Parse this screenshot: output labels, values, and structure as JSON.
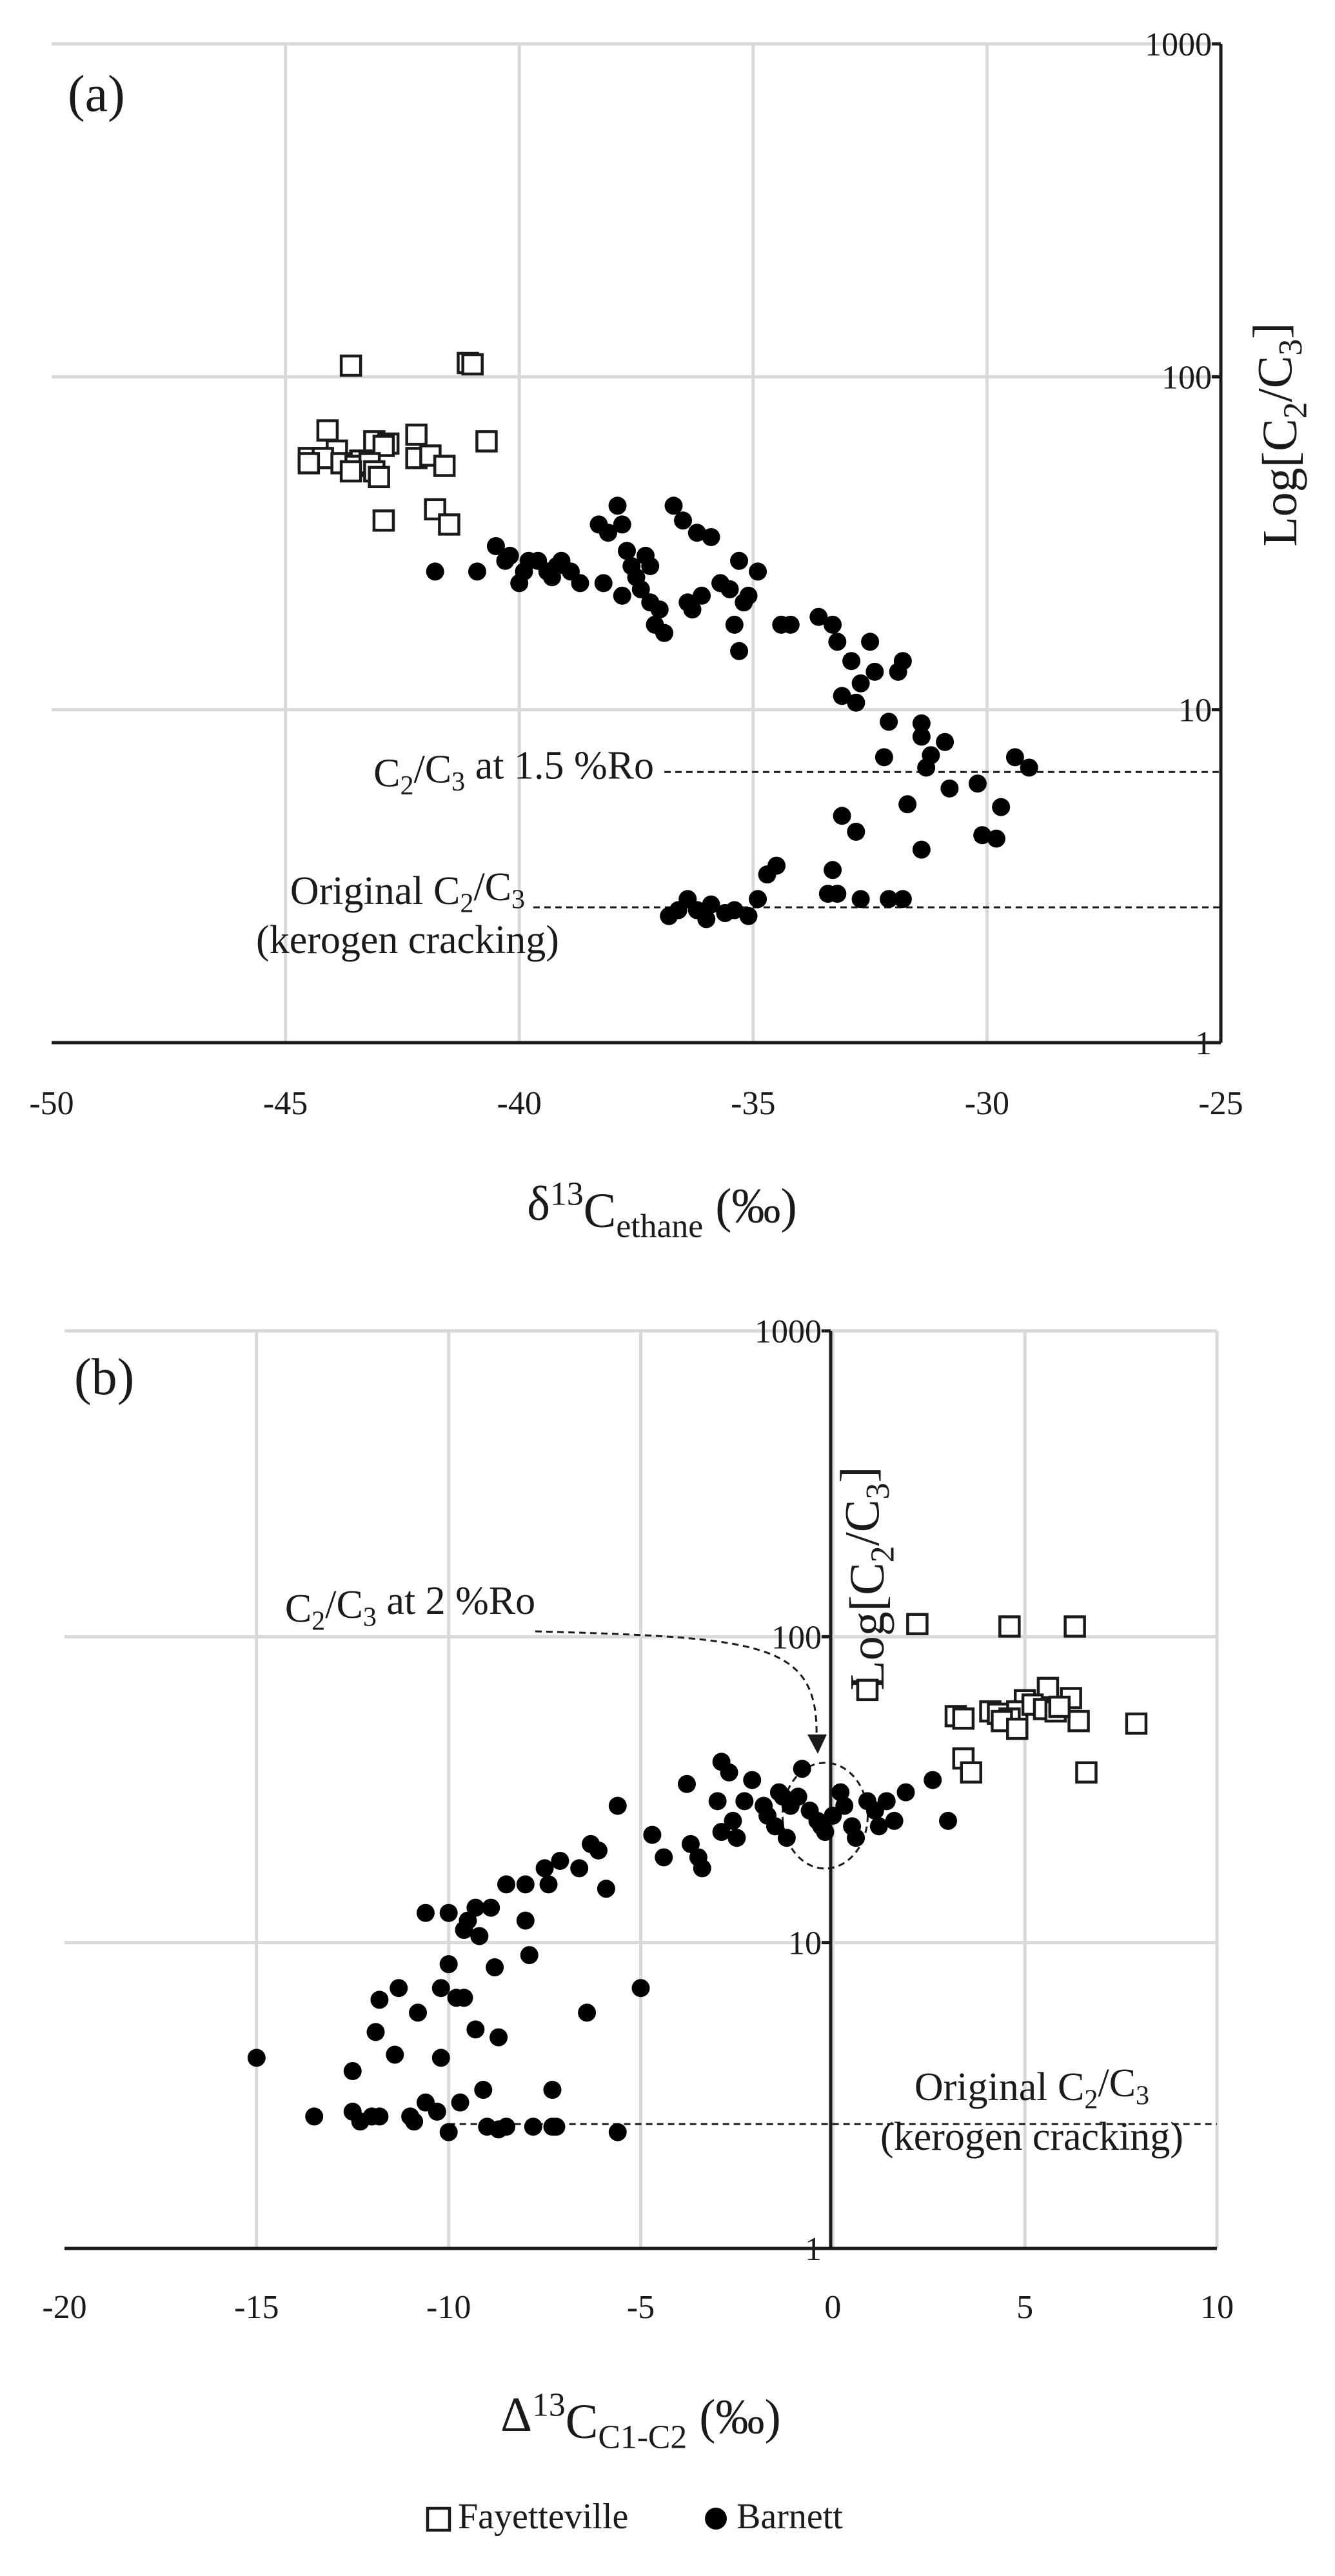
{
  "chart_data": [
    {
      "type": "scatter",
      "panel_label": "(a)",
      "yscale": "log",
      "ylabel_parts": [
        "Log[C",
        "2",
        "/C",
        "3",
        "]"
      ],
      "xlabel_parts": [
        "δ",
        "13",
        "C",
        "ethane",
        " (‰)"
      ],
      "xlim": [
        -50,
        -25
      ],
      "ylim": [
        1,
        1000
      ],
      "x_ticks": [
        -50,
        -45,
        -40,
        -35,
        -30,
        -25
      ],
      "x_tick_labels": [
        "-50",
        "-45",
        "-40",
        "-35",
        "-30",
        "-25"
      ],
      "y_ticks": [
        1,
        10,
        100,
        1000
      ],
      "y_tick_labels": [
        "1",
        "10",
        "100",
        "1000"
      ],
      "annotations": [
        {
          "id": "a-ro",
          "parts": [
            "C",
            "2",
            "/C",
            "3",
            " at 1.5 %Ro"
          ],
          "y": 6.5,
          "x_from": -36.9,
          "x_to": -25
        },
        {
          "id": "a-orig",
          "parts": [
            "Original C",
            "2",
            "/C",
            "3"
          ],
          "line2": "(kerogen cracking)",
          "y": 2.55,
          "x_from": -39.7,
          "x_to": -25
        }
      ],
      "series": [
        {
          "name": "Fayetteville",
          "marker": "open-square",
          "points": [
            [
              -43.6,
              108
            ],
            [
              -41.1,
              110
            ],
            [
              -41.0,
              109
            ],
            [
              -44.1,
              69
            ],
            [
              -42.2,
              67
            ],
            [
              -40.7,
              64
            ],
            [
              -43.1,
              64
            ],
            [
              -42.8,
              63
            ],
            [
              -42.9,
              62
            ],
            [
              -44.5,
              57
            ],
            [
              -43.9,
              60
            ],
            [
              -44.2,
              57
            ],
            [
              -43.4,
              56
            ],
            [
              -42.2,
              57
            ],
            [
              -41.9,
              58
            ],
            [
              -44.5,
              55
            ],
            [
              -43.8,
              55
            ],
            [
              -43.5,
              54
            ],
            [
              -43.2,
              55
            ],
            [
              -41.6,
              54
            ],
            [
              -43.1,
              52
            ],
            [
              -43.6,
              52
            ],
            [
              -43.0,
              50
            ],
            [
              -41.8,
              40
            ],
            [
              -42.9,
              37
            ],
            [
              -41.5,
              36
            ]
          ]
        },
        {
          "name": "Barnett",
          "marker": "filled-circle",
          "points": [
            [
              -41.8,
              26
            ],
            [
              -40.9,
              26
            ],
            [
              -40.5,
              31
            ],
            [
              -40.2,
              29
            ],
            [
              -40.3,
              28
            ],
            [
              -39.9,
              26
            ],
            [
              -39.8,
              28
            ],
            [
              -40.0,
              24
            ],
            [
              -39.6,
              28
            ],
            [
              -39.4,
              26
            ],
            [
              -39.2,
              27
            ],
            [
              -39.1,
              28
            ],
            [
              -38.9,
              26
            ],
            [
              -39.3,
              25
            ],
            [
              -38.7,
              24
            ],
            [
              -38.3,
              36
            ],
            [
              -38.1,
              34
            ],
            [
              -38.2,
              24
            ],
            [
              -37.9,
              41
            ],
            [
              -37.8,
              36
            ],
            [
              -37.7,
              30
            ],
            [
              -37.6,
              27
            ],
            [
              -37.5,
              25
            ],
            [
              -37.4,
              23
            ],
            [
              -37.8,
              22
            ],
            [
              -37.2,
              21
            ],
            [
              -37.0,
              20
            ],
            [
              -37.1,
              18
            ],
            [
              -36.9,
              17
            ],
            [
              -37.3,
              29
            ],
            [
              -37.2,
              27
            ],
            [
              -36.7,
              41
            ],
            [
              -36.5,
              37
            ],
            [
              -36.4,
              21
            ],
            [
              -36.2,
              34
            ],
            [
              -36.3,
              20
            ],
            [
              -36.1,
              22
            ],
            [
              -35.9,
              33
            ],
            [
              -35.7,
              24
            ],
            [
              -35.5,
              23
            ],
            [
              -35.3,
              28
            ],
            [
              -35.4,
              18
            ],
            [
              -35.3,
              15
            ],
            [
              -35.1,
              22
            ],
            [
              -35.2,
              21
            ],
            [
              -34.9,
              26
            ],
            [
              -34.4,
              18
            ],
            [
              -34.2,
              18
            ],
            [
              -33.6,
              19
            ],
            [
              -33.3,
              18
            ],
            [
              -33.2,
              16
            ],
            [
              -33.1,
              11
            ],
            [
              -32.9,
              14
            ],
            [
              -32.7,
              12
            ],
            [
              -32.5,
              16
            ],
            [
              -32.8,
              10.5
            ],
            [
              -32.4,
              13
            ],
            [
              -32.1,
              9.2
            ],
            [
              -31.8,
              14
            ],
            [
              -31.9,
              13
            ],
            [
              -31.4,
              9.1
            ],
            [
              -31.4,
              8.3
            ],
            [
              -32.2,
              7.2
            ],
            [
              -31.2,
              7.3
            ],
            [
              -30.9,
              8.0
            ],
            [
              -31.3,
              6.7
            ],
            [
              -30.2,
              6.0
            ],
            [
              -30.1,
              4.2
            ],
            [
              -29.8,
              4.1
            ],
            [
              -29.4,
              7.2
            ],
            [
              -29.1,
              6.7
            ],
            [
              -29.7,
              5.1
            ],
            [
              -30.8,
              5.8
            ],
            [
              -31.7,
              5.2
            ],
            [
              -31.4,
              3.8
            ],
            [
              -33.1,
              4.8
            ],
            [
              -32.8,
              4.3
            ],
            [
              -33.3,
              3.3
            ],
            [
              -33.4,
              2.8
            ],
            [
              -33.2,
              2.8
            ],
            [
              -32.7,
              2.7
            ],
            [
              -32.1,
              2.7
            ],
            [
              -31.8,
              2.7
            ],
            [
              -36.8,
              2.4
            ],
            [
              -36.6,
              2.5
            ],
            [
              -36.4,
              2.7
            ],
            [
              -36.2,
              2.5
            ],
            [
              -36.0,
              2.35
            ],
            [
              -35.9,
              2.6
            ],
            [
              -35.6,
              2.45
            ],
            [
              -35.4,
              2.5
            ],
            [
              -35.1,
              2.4
            ],
            [
              -34.9,
              2.7
            ],
            [
              -34.7,
              3.2
            ],
            [
              -34.5,
              3.4
            ]
          ]
        }
      ]
    },
    {
      "type": "scatter",
      "panel_label": "(b)",
      "yscale": "log",
      "ylabel_parts": [
        "Log[C",
        "2",
        "/C",
        "3",
        "]"
      ],
      "xlabel_parts": [
        "Δ",
        "13",
        "C",
        "C1-C2",
        " (‰)"
      ],
      "xlim": [
        -20,
        10
      ],
      "ylim": [
        1,
        1000
      ],
      "x_ticks": [
        -20,
        -15,
        -10,
        -5,
        0,
        5,
        10
      ],
      "x_tick_labels": [
        "-20",
        "-15",
        "-10",
        "-5",
        "0",
        "5",
        "10"
      ],
      "y_ticks": [
        1,
        10,
        100,
        1000
      ],
      "y_tick_labels": [
        "1",
        "10",
        "100",
        "1000"
      ],
      "annotations": [
        {
          "id": "b-ro",
          "parts": [
            "C",
            "2",
            "/C",
            "3",
            " at 2 %Ro"
          ],
          "target_x": -0.2,
          "target_y": 26
        },
        {
          "id": "b-orig",
          "parts": [
            "Original C",
            "2",
            "/C",
            "3"
          ],
          "line2": "(kerogen cracking)",
          "y": 2.55,
          "x_from": -10,
          "x_to": 10
        }
      ],
      "series": [
        {
          "name": "Fayetteville",
          "marker": "open-square",
          "points": [
            [
              2.2,
              110
            ],
            [
              4.6,
              108
            ],
            [
              6.3,
              108
            ],
            [
              0.9,
              67
            ],
            [
              5.6,
              68
            ],
            [
              6.2,
              63
            ],
            [
              5.0,
              62
            ],
            [
              4.8,
              57
            ],
            [
              5.2,
              60
            ],
            [
              5.5,
              58
            ],
            [
              5.8,
              57
            ],
            [
              4.1,
              57
            ],
            [
              4.3,
              56
            ],
            [
              3.2,
              55
            ],
            [
              3.4,
              54
            ],
            [
              4.6,
              54
            ],
            [
              4.4,
              53
            ],
            [
              6.4,
              53
            ],
            [
              7.9,
              52
            ],
            [
              4.8,
              50
            ],
            [
              3.4,
              40
            ],
            [
              3.6,
              36
            ],
            [
              6.6,
              36
            ],
            [
              5.9,
              59
            ]
          ]
        },
        {
          "name": "Barnett",
          "marker": "filled-circle",
          "points": [
            [
              -15,
              4.2
            ],
            [
              -13.5,
              2.7
            ],
            [
              -12.5,
              2.8
            ],
            [
              -12.5,
              3.8
            ],
            [
              -12.3,
              2.6
            ],
            [
              -12.0,
              2.7
            ],
            [
              -11.8,
              2.7
            ],
            [
              -11.9,
              5.1
            ],
            [
              -11.8,
              6.5
            ],
            [
              -11.4,
              4.3
            ],
            [
              -11.3,
              7.1
            ],
            [
              -11.0,
              2.7
            ],
            [
              -10.9,
              2.6
            ],
            [
              -10.8,
              5.9
            ],
            [
              -10.6,
              3.0
            ],
            [
              -10.6,
              12.5
            ],
            [
              -10.3,
              2.8
            ],
            [
              -10.2,
              4.2
            ],
            [
              -10.2,
              7.1
            ],
            [
              -10.0,
              8.5
            ],
            [
              -10.0,
              12.5
            ],
            [
              -10.0,
              2.4
            ],
            [
              -9.8,
              6.6
            ],
            [
              -9.7,
              3.0
            ],
            [
              -9.6,
              11.0
            ],
            [
              -9.6,
              6.6
            ],
            [
              -9.5,
              11.8
            ],
            [
              -9.3,
              13.0
            ],
            [
              -9.3,
              5.2
            ],
            [
              -9.1,
              3.3
            ],
            [
              -9.0,
              2.5
            ],
            [
              -9.2,
              10.5
            ],
            [
              -8.9,
              13.0
            ],
            [
              -8.8,
              8.3
            ],
            [
              -8.7,
              4.9
            ],
            [
              -8.7,
              2.45
            ],
            [
              -8.5,
              15.5
            ],
            [
              -8.5,
              2.5
            ],
            [
              -8.0,
              15.5
            ],
            [
              -8.0,
              11.8
            ],
            [
              -7.9,
              9.1
            ],
            [
              -7.8,
              2.5
            ],
            [
              -7.5,
              17.5
            ],
            [
              -7.4,
              15.5
            ],
            [
              -7.3,
              3.3
            ],
            [
              -7.3,
              2.5
            ],
            [
              -7.2,
              2.5
            ],
            [
              -7.1,
              18.5
            ],
            [
              -6.6,
              17.5
            ],
            [
              -6.3,
              21.0
            ],
            [
              -6.4,
              5.9
            ],
            [
              -6.1,
              20.0
            ],
            [
              -5.9,
              15.0
            ],
            [
              -5.6,
              28.0
            ],
            [
              -5.6,
              2.4
            ],
            [
              -5.0,
              7.1
            ],
            [
              -4.7,
              22.5
            ],
            [
              -4.4,
              19.0
            ],
            [
              -3.8,
              33.0
            ],
            [
              -3.7,
              21.0
            ],
            [
              -3.5,
              19.0
            ],
            [
              -3.4,
              17.5
            ],
            [
              -3.0,
              29.0
            ],
            [
              -2.9,
              39.0
            ],
            [
              -2.7,
              36.0
            ],
            [
              -2.9,
              23.0
            ],
            [
              -2.6,
              25.0
            ],
            [
              -2.5,
              22.0
            ],
            [
              -2.1,
              34.0
            ],
            [
              -1.8,
              28.0
            ],
            [
              -1.7,
              26.0
            ],
            [
              -1.5,
              24.0
            ],
            [
              -1.3,
              30.0
            ],
            [
              -1.2,
              22.0
            ],
            [
              -1.1,
              28.0
            ],
            [
              -0.8,
              37.0
            ],
            [
              -0.6,
              27.0
            ],
            [
              -0.4,
              25.0
            ],
            [
              -0.3,
              24.0
            ],
            [
              -0.2,
              23.0
            ],
            [
              0.0,
              26.0
            ],
            [
              0.2,
              31.0
            ],
            [
              0.3,
              28.0
            ],
            [
              0.5,
              24.0
            ],
            [
              0.6,
              22.0
            ],
            [
              0.9,
              29.0
            ],
            [
              1.1,
              27.0
            ],
            [
              1.2,
              24.0
            ],
            [
              1.4,
              29.0
            ],
            [
              1.6,
              25.0
            ],
            [
              1.9,
              31.0
            ],
            [
              2.6,
              34.0
            ],
            [
              3.0,
              25.0
            ],
            [
              -0.9,
              30.0
            ],
            [
              -1.4,
              31.0
            ],
            [
              -2.3,
              29.0
            ]
          ]
        }
      ]
    }
  ],
  "legend": [
    {
      "symbol": "□",
      "label": "Fayetteville"
    },
    {
      "symbol": "●",
      "label": "Barnett"
    }
  ]
}
